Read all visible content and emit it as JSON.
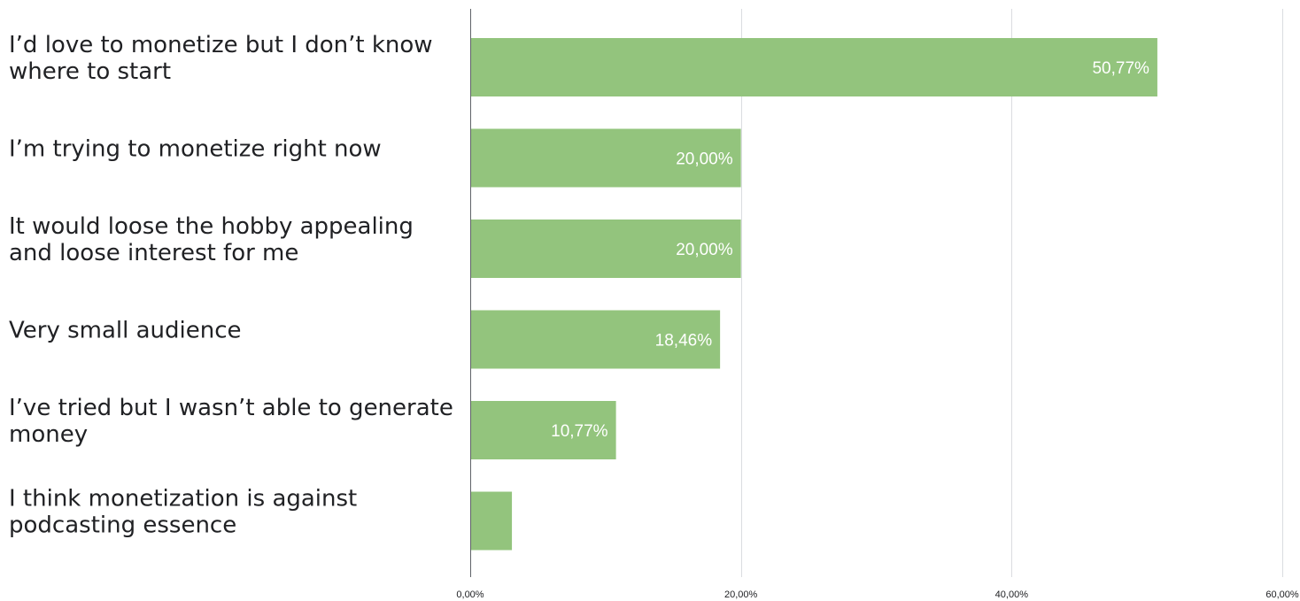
{
  "chart_data": {
    "type": "bar",
    "orientation": "horizontal",
    "categories": [
      [
        "I’d love to monetize but I don’t know",
        "where to start"
      ],
      [
        "I’m trying to monetize right now"
      ],
      [
        "It would loose the hobby appealing",
        "and loose interest for me"
      ],
      [
        "Very small audience"
      ],
      [
        "I’ve tried but I wasn’t able to generate",
        "money"
      ],
      [
        "I think monetization is against",
        "podcasting essence"
      ]
    ],
    "values": [
      50.77,
      20.0,
      20.0,
      18.46,
      10.77,
      3.08
    ],
    "data_labels": [
      "50,77%",
      "20,00%",
      "20,00%",
      "18,46%",
      "10,77%",
      ""
    ],
    "xlim": [
      0,
      60
    ],
    "x_ticks": [
      0,
      20,
      40,
      60
    ],
    "x_tick_labels": [
      "0,00%",
      "20,00%",
      "40,00%",
      "60,00%"
    ],
    "title": "",
    "xlabel": "",
    "ylabel": "",
    "grid": true,
    "legend": "none",
    "bar_color": "#93c47d",
    "label_color": "#ffffff"
  }
}
